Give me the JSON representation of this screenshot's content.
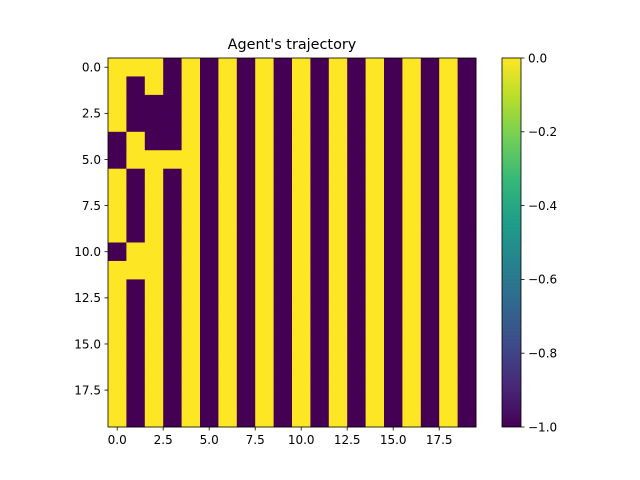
{
  "chart_data": {
    "type": "heatmap",
    "title": "Agent's trajectory",
    "xlabel": "",
    "ylabel": "",
    "rows": 20,
    "cols": 20,
    "colormap": "viridis",
    "vmin": -1.0,
    "vmax": 0.0,
    "colors": {
      "low": "#440154",
      "high": "#fde725"
    },
    "x_ticks": [
      {
        "value": 0,
        "label": "0.0"
      },
      {
        "value": 2.5,
        "label": "2.5"
      },
      {
        "value": 5,
        "label": "5.0"
      },
      {
        "value": 7.5,
        "label": "7.5"
      },
      {
        "value": 10,
        "label": "10.0"
      },
      {
        "value": 12.5,
        "label": "12.5"
      },
      {
        "value": 15,
        "label": "15.0"
      },
      {
        "value": 17.5,
        "label": "17.5"
      }
    ],
    "y_ticks": [
      {
        "value": 0,
        "label": "0.0"
      },
      {
        "value": 2.5,
        "label": "2.5"
      },
      {
        "value": 5,
        "label": "5.0"
      },
      {
        "value": 7.5,
        "label": "7.5"
      },
      {
        "value": 10,
        "label": "10.0"
      },
      {
        "value": 12.5,
        "label": "12.5"
      },
      {
        "value": 15,
        "label": "15.0"
      },
      {
        "value": 17.5,
        "label": "17.5"
      }
    ],
    "colorbar_ticks": [
      {
        "value": 0.0,
        "label": "0.0"
      },
      {
        "value": -0.2,
        "label": "−0.2"
      },
      {
        "value": -0.4,
        "label": "−0.4"
      },
      {
        "value": -0.6,
        "label": "−0.6"
      },
      {
        "value": -0.8,
        "label": "−0.8"
      },
      {
        "value": -1.0,
        "label": "−1.0"
      }
    ],
    "values": [
      [
        0,
        0,
        0,
        -1,
        0,
        -1,
        0,
        -1,
        0,
        -1,
        0,
        -1,
        0,
        -1,
        0,
        -1,
        0,
        -1,
        0,
        -1
      ],
      [
        0,
        -1,
        0,
        -1,
        0,
        -1,
        0,
        -1,
        0,
        -1,
        0,
        -1,
        0,
        -1,
        0,
        -1,
        0,
        -1,
        0,
        -1
      ],
      [
        0,
        -1,
        -1,
        -1,
        0,
        -1,
        0,
        -1,
        0,
        -1,
        0,
        -1,
        0,
        -1,
        0,
        -1,
        0,
        -1,
        0,
        -1
      ],
      [
        0,
        -1,
        -1,
        -1,
        0,
        -1,
        0,
        -1,
        0,
        -1,
        0,
        -1,
        0,
        -1,
        0,
        -1,
        0,
        -1,
        0,
        -1
      ],
      [
        -1,
        0,
        -1,
        -1,
        0,
        -1,
        0,
        -1,
        0,
        -1,
        0,
        -1,
        0,
        -1,
        0,
        -1,
        0,
        -1,
        0,
        -1
      ],
      [
        -1,
        0,
        0,
        0,
        0,
        -1,
        0,
        -1,
        0,
        -1,
        0,
        -1,
        0,
        -1,
        0,
        -1,
        0,
        -1,
        0,
        -1
      ],
      [
        0,
        -1,
        0,
        -1,
        0,
        -1,
        0,
        -1,
        0,
        -1,
        0,
        -1,
        0,
        -1,
        0,
        -1,
        0,
        -1,
        0,
        -1
      ],
      [
        0,
        -1,
        0,
        -1,
        0,
        -1,
        0,
        -1,
        0,
        -1,
        0,
        -1,
        0,
        -1,
        0,
        -1,
        0,
        -1,
        0,
        -1
      ],
      [
        0,
        -1,
        0,
        -1,
        0,
        -1,
        0,
        -1,
        0,
        -1,
        0,
        -1,
        0,
        -1,
        0,
        -1,
        0,
        -1,
        0,
        -1
      ],
      [
        0,
        -1,
        0,
        -1,
        0,
        -1,
        0,
        -1,
        0,
        -1,
        0,
        -1,
        0,
        -1,
        0,
        -1,
        0,
        -1,
        0,
        -1
      ],
      [
        -1,
        0,
        0,
        -1,
        0,
        -1,
        0,
        -1,
        0,
        -1,
        0,
        -1,
        0,
        -1,
        0,
        -1,
        0,
        -1,
        0,
        -1
      ],
      [
        0,
        0,
        0,
        -1,
        0,
        -1,
        0,
        -1,
        0,
        -1,
        0,
        -1,
        0,
        -1,
        0,
        -1,
        0,
        -1,
        0,
        -1
      ],
      [
        0,
        -1,
        0,
        -1,
        0,
        -1,
        0,
        -1,
        0,
        -1,
        0,
        -1,
        0,
        -1,
        0,
        -1,
        0,
        -1,
        0,
        -1
      ],
      [
        0,
        -1,
        0,
        -1,
        0,
        -1,
        0,
        -1,
        0,
        -1,
        0,
        -1,
        0,
        -1,
        0,
        -1,
        0,
        -1,
        0,
        -1
      ],
      [
        0,
        -1,
        0,
        -1,
        0,
        -1,
        0,
        -1,
        0,
        -1,
        0,
        -1,
        0,
        -1,
        0,
        -1,
        0,
        -1,
        0,
        -1
      ],
      [
        0,
        -1,
        0,
        -1,
        0,
        -1,
        0,
        -1,
        0,
        -1,
        0,
        -1,
        0,
        -1,
        0,
        -1,
        0,
        -1,
        0,
        -1
      ],
      [
        0,
        -1,
        0,
        -1,
        0,
        -1,
        0,
        -1,
        0,
        -1,
        0,
        -1,
        0,
        -1,
        0,
        -1,
        0,
        -1,
        0,
        -1
      ],
      [
        0,
        -1,
        0,
        -1,
        0,
        -1,
        0,
        -1,
        0,
        -1,
        0,
        -1,
        0,
        -1,
        0,
        -1,
        0,
        -1,
        0,
        -1
      ],
      [
        0,
        -1,
        0,
        -1,
        0,
        -1,
        0,
        -1,
        0,
        -1,
        0,
        -1,
        0,
        -1,
        0,
        -1,
        0,
        -1,
        0,
        -1
      ],
      [
        0,
        -1,
        0,
        -1,
        0,
        -1,
        0,
        -1,
        0,
        -1,
        0,
        -1,
        0,
        -1,
        0,
        -1,
        0,
        -1,
        0,
        -1
      ]
    ]
  }
}
